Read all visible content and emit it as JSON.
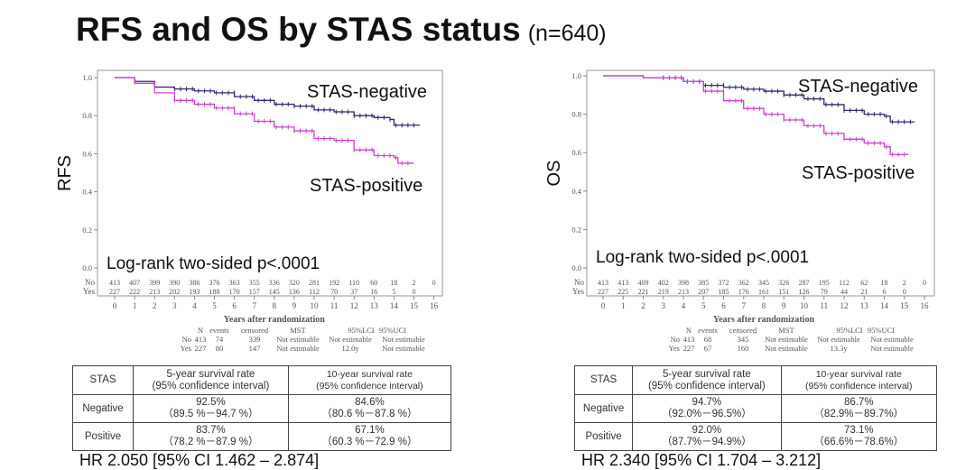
{
  "title": "RFS and OS by STAS status",
  "subtitle": "(n=640)",
  "chart_data": [
    {
      "type": "line",
      "subtype": "kaplan-meier",
      "ylabel": "RFS",
      "xlabel": "Years after randomization",
      "ylim": [
        0,
        1
      ],
      "xlim": [
        0,
        16
      ],
      "yticks": [
        "0.0",
        "0.2",
        "0.4",
        "0.6",
        "0.8",
        "1.0"
      ],
      "xticks": [
        "0",
        "1",
        "2",
        "3",
        "4",
        "5",
        "6",
        "7",
        "8",
        "9",
        "10",
        "11",
        "12",
        "13",
        "14",
        "15",
        "16"
      ],
      "annotation": "Log-rank two-sided p<.0001",
      "grid": false,
      "series": [
        {
          "name": "STAS-negative",
          "color": "#2b2b70",
          "x": [
            0,
            1,
            2,
            3,
            4,
            5,
            6,
            7,
            8,
            9,
            10,
            11,
            12,
            13,
            13.8,
            14,
            15.3
          ],
          "y": [
            1.0,
            0.98,
            0.95,
            0.94,
            0.93,
            0.92,
            0.9,
            0.88,
            0.86,
            0.85,
            0.83,
            0.82,
            0.8,
            0.79,
            0.78,
            0.75,
            0.75
          ]
        },
        {
          "name": "STAS-positive",
          "color": "#d040d0",
          "x": [
            0,
            1,
            2,
            3,
            4,
            5,
            6,
            7,
            8,
            9,
            10,
            11,
            12,
            13,
            14,
            14.2,
            15.0
          ],
          "y": [
            1.0,
            0.97,
            0.92,
            0.88,
            0.86,
            0.84,
            0.81,
            0.77,
            0.74,
            0.72,
            0.68,
            0.67,
            0.62,
            0.59,
            0.58,
            0.55,
            0.55
          ]
        }
      ],
      "at_risk": {
        "labels": [
          "No",
          "Yes"
        ],
        "rows": [
          [
            "413",
            "407",
            "399",
            "390",
            "386",
            "376",
            "363",
            "355",
            "336",
            "320",
            "281",
            "192",
            "110",
            "60",
            "18",
            "2",
            "0"
          ],
          [
            "227",
            "222",
            "213",
            "202",
            "193",
            "188",
            "170",
            "157",
            "145",
            "136",
            "112",
            "70",
            "37",
            "16",
            "5",
            "0",
            ""
          ]
        ]
      },
      "summary": {
        "header": [
          "N",
          "events",
          "censored",
          "MST",
          "95%LCI",
          "95%UCI"
        ],
        "rows": [
          [
            "No",
            "413",
            "74",
            "339",
            "Not estimable",
            "Not estimable",
            "Not estimable"
          ],
          [
            "Yes",
            "227",
            "80",
            "147",
            "Not estimable",
            "12.0y",
            "Not estimable"
          ]
        ]
      }
    },
    {
      "type": "line",
      "subtype": "kaplan-meier",
      "ylabel": "OS",
      "xlabel": "Years after randomization",
      "ylim": [
        0,
        1
      ],
      "xlim": [
        0,
        16
      ],
      "yticks": [
        "0.0",
        "0.2",
        "0.4",
        "0.6",
        "0.8",
        "1.0"
      ],
      "xticks": [
        "0",
        "1",
        "2",
        "3",
        "4",
        "5",
        "6",
        "7",
        "8",
        "9",
        "10",
        "11",
        "12",
        "13",
        "14",
        "15",
        "16"
      ],
      "annotation": "Log-rank two-sided p<.0001",
      "grid": false,
      "series": [
        {
          "name": "STAS-negative",
          "color": "#2b2b70",
          "x": [
            0,
            2,
            4,
            5,
            6,
            7,
            8,
            9,
            10,
            11,
            12,
            13,
            14,
            14.3,
            15.5
          ],
          "y": [
            1.0,
            0.99,
            0.97,
            0.95,
            0.94,
            0.93,
            0.92,
            0.9,
            0.88,
            0.85,
            0.82,
            0.8,
            0.79,
            0.76,
            0.76
          ]
        },
        {
          "name": "STAS-positive",
          "color": "#d040d0",
          "x": [
            0,
            2,
            4,
            5,
            6,
            7,
            8,
            9,
            10,
            11,
            12,
            13,
            14,
            14.3,
            15.2
          ],
          "y": [
            1.0,
            0.99,
            0.97,
            0.92,
            0.87,
            0.83,
            0.8,
            0.77,
            0.74,
            0.7,
            0.67,
            0.65,
            0.63,
            0.59,
            0.59
          ]
        }
      ],
      "at_risk": {
        "labels": [
          "No",
          "Yes"
        ],
        "rows": [
          [
            "413",
            "413",
            "409",
            "402",
            "398",
            "385",
            "372",
            "362",
            "345",
            "326",
            "287",
            "195",
            "112",
            "62",
            "18",
            "2",
            "0"
          ],
          [
            "227",
            "225",
            "221",
            "219",
            "213",
            "207",
            "185",
            "176",
            "161",
            "151",
            "126",
            "79",
            "44",
            "21",
            "6",
            "0",
            ""
          ]
        ]
      },
      "summary": {
        "header": [
          "N",
          "events",
          "censored",
          "MST",
          "95%LCI",
          "95%UCI"
        ],
        "rows": [
          [
            "No",
            "413",
            "68",
            "345",
            "Not estimable",
            "Not estimable",
            "Not estimable"
          ],
          [
            "Yes",
            "227",
            "67",
            "160",
            "Not estimable",
            "13.3y",
            "Not estimable"
          ]
        ]
      }
    }
  ],
  "tables": [
    {
      "header": [
        "STAS",
        "5-year survival rate",
        "(95% confidence interval)",
        "10-year survival rate",
        "(95% confidence interval)"
      ],
      "rows": [
        {
          "label": "Negative",
          "v5": "92.5%",
          "ci5": "（89.5 %－94.7 %）",
          "v10": "84.6%",
          "ci10": "（80.6 %－87.8 %）"
        },
        {
          "label": "Positive",
          "v5": "83.7%",
          "ci5": "（78.2 %－87.9 %）",
          "v10": "67.1%",
          "ci10": "（60.3 %－72.9 %）"
        }
      ],
      "hr": "HR 2.050 [95% CI 1.462 – 2.874]"
    },
    {
      "header": [
        "STAS",
        "5-year survival rate",
        "(95% confidence interval)",
        "10-year survival rate",
        "(95% confidence interval)"
      ],
      "rows": [
        {
          "label": "Negative",
          "v5": "94.7%",
          "ci5": "（92.0%－96.5%）",
          "v10": "86.7%",
          "ci10": "（82.9%－89.7%）"
        },
        {
          "label": "Positive",
          "v5": "92.0%",
          "ci5": "（87.7%－94.9%）",
          "v10": "73.1%",
          "ci10": "（66.6%－78.6%）"
        }
      ],
      "hr": "HR 2.340 [95% CI 1.704 – 3.212]"
    }
  ]
}
